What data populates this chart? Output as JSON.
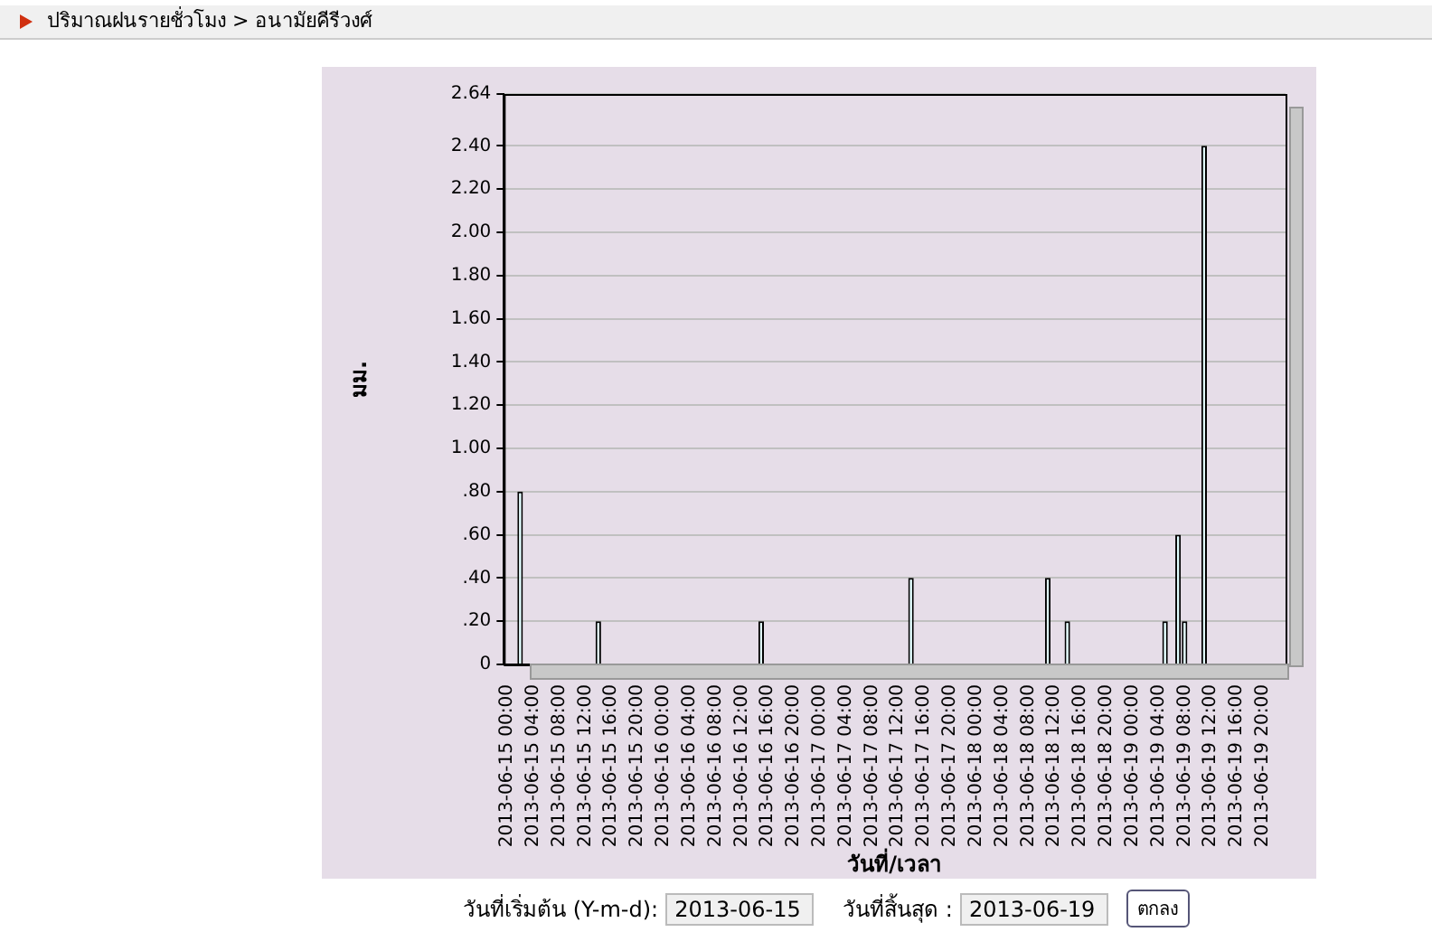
{
  "chart_data": {
    "type": "bar",
    "title": "ปริมาณฝนรายชั่วโมง  >  อนามัยคีรีวงศ์",
    "xlabel": "วันที่/เวลา",
    "ylabel": "มม.",
    "categories": [
      "2013-06-15 00:00",
      null,
      null,
      null,
      "2013-06-15 04:00",
      null,
      null,
      null,
      "2013-06-15 08:00",
      null,
      null,
      null,
      "2013-06-15 12:00",
      null,
      null,
      null,
      "2013-06-15 16:00",
      null,
      null,
      null,
      "2013-06-15 20:00",
      null,
      null,
      null,
      "2013-06-16 00:00",
      null,
      null,
      null,
      "2013-06-16 04:00",
      null,
      null,
      null,
      "2013-06-16 08:00",
      null,
      null,
      null,
      "2013-06-16 12:00",
      null,
      null,
      null,
      "2013-06-16 16:00",
      null,
      null,
      null,
      "2013-06-16 20:00",
      null,
      null,
      null,
      "2013-06-17 00:00",
      null,
      null,
      null,
      "2013-06-17 04:00",
      null,
      null,
      null,
      "2013-06-17 08:00",
      null,
      null,
      null,
      "2013-06-17 12:00",
      null,
      null,
      null,
      "2013-06-17 16:00",
      null,
      null,
      null,
      "2013-06-17 20:00",
      null,
      null,
      null,
      "2013-06-18 00:00",
      null,
      null,
      null,
      "2013-06-18 04:00",
      null,
      null,
      null,
      "2013-06-18 08:00",
      null,
      null,
      null,
      "2013-06-18 12:00",
      null,
      null,
      null,
      "2013-06-18 16:00",
      null,
      null,
      null,
      "2013-06-18 20:00",
      null,
      null,
      null,
      "2013-06-19 00:00",
      null,
      null,
      null,
      "2013-06-19 04:00",
      null,
      null,
      null,
      "2013-06-19 08:00",
      null,
      null,
      null,
      "2013-06-19 12:00",
      null,
      null,
      null,
      "2013-06-19 16:00",
      null,
      null,
      null,
      "2013-06-19 20:00",
      null,
      null,
      null
    ],
    "values": [
      0,
      0,
      0.8,
      0,
      0,
      0,
      0,
      0,
      0,
      0,
      0,
      0,
      0,
      0,
      0.2,
      0,
      0,
      0,
      0,
      0,
      0,
      0,
      0,
      0,
      0,
      0,
      0,
      0,
      0,
      0,
      0,
      0,
      0,
      0,
      0,
      0,
      0,
      0,
      0,
      0.2,
      0,
      0,
      0,
      0,
      0,
      0,
      0,
      0,
      0,
      0,
      0,
      0,
      0,
      0,
      0,
      0,
      0,
      0,
      0,
      0,
      0,
      0,
      0.4,
      0,
      0,
      0,
      0,
      0,
      0,
      0,
      0,
      0,
      0,
      0,
      0,
      0,
      0,
      0,
      0,
      0,
      0,
      0,
      0,
      0.4,
      0,
      0,
      0.2,
      0,
      0,
      0,
      0,
      0,
      0,
      0,
      0,
      0,
      0,
      0,
      0,
      0,
      0,
      0.2,
      0,
      0.6,
      0.2,
      0,
      0,
      2.4,
      0,
      0,
      0,
      0,
      0,
      0,
      0,
      0,
      0,
      0,
      0,
      0
    ],
    "color": "#e0ffff",
    "ylim": [
      0,
      2.64
    ],
    "yticks": [
      0,
      {
        "value": 0.2,
        "label": ".20"
      },
      {
        "value": 0.4,
        "label": ".40"
      },
      {
        "value": 0.6,
        "label": ".60"
      },
      {
        "value": 0.8,
        "label": ".80"
      },
      {
        "value": 1,
        "label": "1.00"
      },
      {
        "value": 1.2,
        "label": "1.20"
      },
      {
        "value": 1.4,
        "label": "1.40"
      },
      {
        "value": 1.6,
        "label": "1.60"
      },
      {
        "value": 1.8,
        "label": "1.80"
      },
      {
        "value": 2,
        "label": "2.00"
      },
      {
        "value": 2.2,
        "label": "2.20"
      },
      {
        "value": 2.4,
        "label": "2.40"
      },
      2.64
    ],
    "grid": "y",
    "annotations": [
      "วันที่เริ่มต้น (Y-m-d):",
      "2013-06-15",
      "วันที่สิ้นสุด :",
      "2013-06-19",
      "ตกลง"
    ]
  }
}
